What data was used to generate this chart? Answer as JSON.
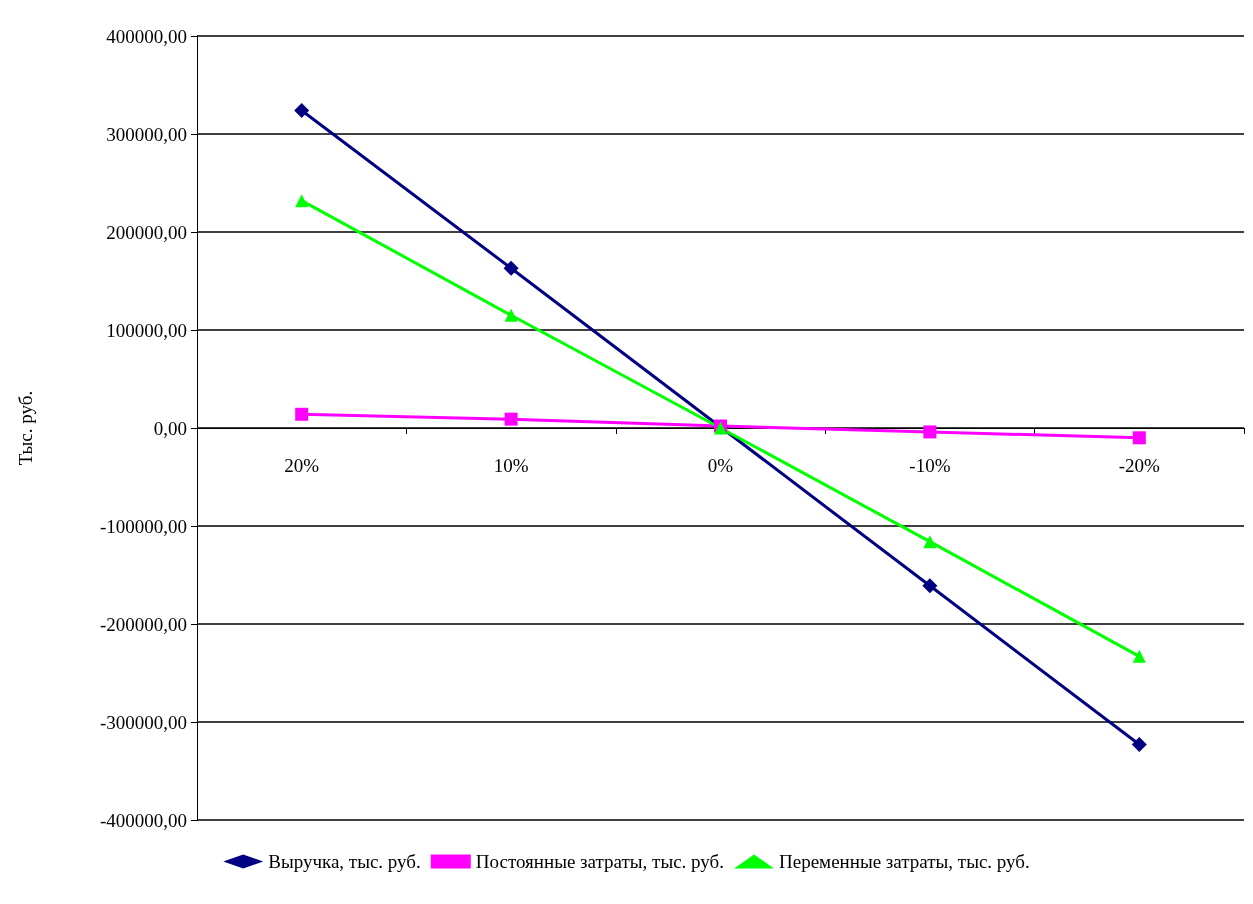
{
  "chart_data": {
    "type": "line",
    "ylabel": "Тыс. руб.",
    "categories": [
      "20%",
      "10%",
      "0%",
      "-10%",
      "-20%"
    ],
    "series": [
      {
        "name": "Выручка, тыс. руб.",
        "color": "#000080",
        "marker": "diamond",
        "values": [
          324000,
          163000,
          1000,
          -161000,
          -323000
        ]
      },
      {
        "name": "Постоянные затраты, тыс. руб.",
        "color": "#ff00ff",
        "marker": "square",
        "values": [
          14000,
          9000,
          2000,
          -4000,
          -10000
        ]
      },
      {
        "name": "Переменные затраты, тыс. руб.",
        "color": "#00ff00",
        "marker": "triangle",
        "values": [
          232000,
          115000,
          0,
          -116000,
          -233000
        ]
      }
    ],
    "ylim": [
      -400000,
      400000
    ],
    "yticks": [
      {
        "value": -400000,
        "label": "-400000,00"
      },
      {
        "value": -300000,
        "label": "-300000,00"
      },
      {
        "value": -200000,
        "label": "-200000,00"
      },
      {
        "value": -100000,
        "label": "-100000,00"
      },
      {
        "value": 0,
        "label": "0,00"
      },
      {
        "value": 100000,
        "label": "100000,00"
      },
      {
        "value": 200000,
        "label": "200000,00"
      },
      {
        "value": 300000,
        "label": "300000,00"
      },
      {
        "value": 400000,
        "label": "400000,00"
      }
    ],
    "grid": "y",
    "legend": "bottom",
    "line_style": "solid"
  }
}
